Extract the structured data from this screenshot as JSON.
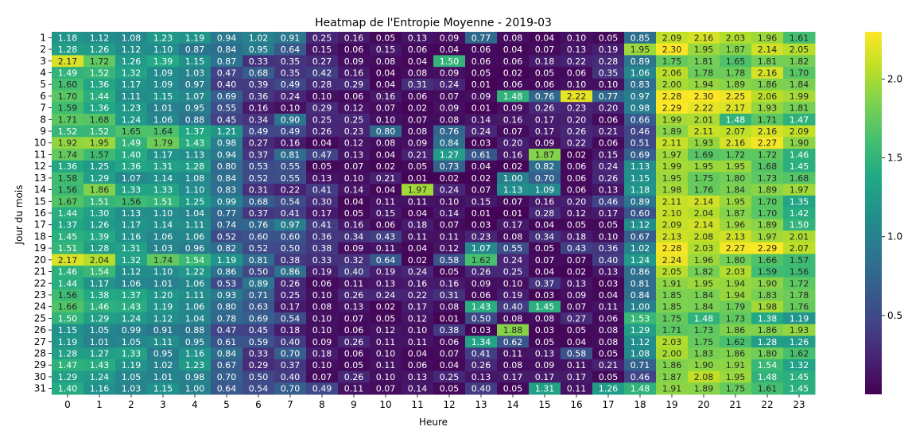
{
  "chart_data": {
    "type": "heatmap",
    "title": "Heatmap de l'Entropie Moyenne - 2019-03",
    "xlabel": "Heure",
    "ylabel": "Jour du mois",
    "x": [
      "0",
      "1",
      "2",
      "3",
      "4",
      "5",
      "6",
      "7",
      "8",
      "9",
      "10",
      "11",
      "12",
      "13",
      "14",
      "15",
      "16",
      "17",
      "18",
      "19",
      "20",
      "21",
      "22",
      "23"
    ],
    "y": [
      "1",
      "2",
      "3",
      "4",
      "5",
      "6",
      "7",
      "8",
      "9",
      "10",
      "11",
      "12",
      "13",
      "14",
      "15",
      "16",
      "17",
      "18",
      "19",
      "20",
      "21",
      "22",
      "23",
      "24",
      "25",
      "26",
      "27",
      "28",
      "29",
      "30",
      "31"
    ],
    "values": [
      [
        1.18,
        1.12,
        1.08,
        1.23,
        1.19,
        0.94,
        1.02,
        0.91,
        0.25,
        0.16,
        0.05,
        0.13,
        0.09,
        0.77,
        0.08,
        0.04,
        0.1,
        0.05,
        0.85,
        2.09,
        2.16,
        2.03,
        1.96,
        1.61
      ],
      [
        1.28,
        1.26,
        1.12,
        1.1,
        0.87,
        0.84,
        0.95,
        0.64,
        0.15,
        0.06,
        0.15,
        0.06,
        0.04,
        0.06,
        0.04,
        0.07,
        0.13,
        0.19,
        1.95,
        2.3,
        1.95,
        1.87,
        2.14,
        2.05
      ],
      [
        2.17,
        1.72,
        1.26,
        1.39,
        1.15,
        0.87,
        0.33,
        0.35,
        0.27,
        0.09,
        0.08,
        0.04,
        1.5,
        0.06,
        0.06,
        0.18,
        0.22,
        0.28,
        0.89,
        1.75,
        1.81,
        1.65,
        1.81,
        1.82
      ],
      [
        1.49,
        1.52,
        1.32,
        1.09,
        1.03,
        0.47,
        0.68,
        0.35,
        0.42,
        0.16,
        0.04,
        0.08,
        0.09,
        0.05,
        0.02,
        0.05,
        0.06,
        0.35,
        1.06,
        2.06,
        1.78,
        1.78,
        2.16,
        1.7
      ],
      [
        1.6,
        1.36,
        1.17,
        1.09,
        0.97,
        0.4,
        0.39,
        0.49,
        0.28,
        0.29,
        0.04,
        0.31,
        0.24,
        0.01,
        0.06,
        0.06,
        0.1,
        0.1,
        0.83,
        2.0,
        1.94,
        1.89,
        1.86,
        1.84
      ],
      [
        1.7,
        1.44,
        1.11,
        1.15,
        1.07,
        0.69,
        0.36,
        0.24,
        0.1,
        0.06,
        0.16,
        0.06,
        0.07,
        0.09,
        1.48,
        0.76,
        2.22,
        0.77,
        0.97,
        2.28,
        2.3,
        2.25,
        2.06,
        1.99
      ],
      [
        1.59,
        1.36,
        1.23,
        1.01,
        0.95,
        0.55,
        0.16,
        0.1,
        0.29,
        0.12,
        0.07,
        0.02,
        0.09,
        0.01,
        0.09,
        0.26,
        0.23,
        0.2,
        0.98,
        2.29,
        2.22,
        2.17,
        1.93,
        1.81
      ],
      [
        1.71,
        1.68,
        1.24,
        1.06,
        0.88,
        0.45,
        0.34,
        0.9,
        0.25,
        0.25,
        0.1,
        0.07,
        0.08,
        0.14,
        0.16,
        0.17,
        0.2,
        0.06,
        0.66,
        1.99,
        2.01,
        1.48,
        1.71,
        1.47
      ],
      [
        1.52,
        1.52,
        1.65,
        1.64,
        1.37,
        1.21,
        0.49,
        0.49,
        0.26,
        0.23,
        0.8,
        0.08,
        0.76,
        0.24,
        0.07,
        0.17,
        0.26,
        0.21,
        0.46,
        1.89,
        2.11,
        2.07,
        2.16,
        2.09
      ],
      [
        1.92,
        1.95,
        1.49,
        1.79,
        1.43,
        0.98,
        0.27,
        0.16,
        0.04,
        0.12,
        0.08,
        0.09,
        0.84,
        0.03,
        0.2,
        0.09,
        0.22,
        0.06,
        0.51,
        2.11,
        1.93,
        2.16,
        2.27,
        1.9
      ],
      [
        1.74,
        1.57,
        1.4,
        1.17,
        1.13,
        0.94,
        0.37,
        0.81,
        0.47,
        0.13,
        0.04,
        0.21,
        1.27,
        0.61,
        0.16,
        1.87,
        0.02,
        0.15,
        0.69,
        1.97,
        1.69,
        1.72,
        1.72,
        1.46
      ],
      [
        1.36,
        1.25,
        1.36,
        1.31,
        1.28,
        0.8,
        0.53,
        0.55,
        0.05,
        0.07,
        0.02,
        0.05,
        0.73,
        0.04,
        0.02,
        0.82,
        0.06,
        0.24,
        1.13,
        1.99,
        1.95,
        1.95,
        1.68,
        1.45
      ],
      [
        1.58,
        1.29,
        1.07,
        1.14,
        1.08,
        0.84,
        0.52,
        0.55,
        0.13,
        0.1,
        0.21,
        0.01,
        0.02,
        0.02,
        1.0,
        0.7,
        0.06,
        0.26,
        1.15,
        1.95,
        1.75,
        1.8,
        1.73,
        1.68
      ],
      [
        1.56,
        1.86,
        1.33,
        1.33,
        1.1,
        0.83,
        0.31,
        0.22,
        0.41,
        0.14,
        0.04,
        1.97,
        0.24,
        0.07,
        1.13,
        1.09,
        0.06,
        0.13,
        1.18,
        1.98,
        1.76,
        1.84,
        1.89,
        1.97
      ],
      [
        1.67,
        1.51,
        1.56,
        1.51,
        1.25,
        0.99,
        0.68,
        0.54,
        0.3,
        0.04,
        0.11,
        0.11,
        0.1,
        0.15,
        0.07,
        0.16,
        0.2,
        0.46,
        0.89,
        2.11,
        2.14,
        1.95,
        1.7,
        1.35
      ],
      [
        1.44,
        1.3,
        1.13,
        1.1,
        1.04,
        0.77,
        0.37,
        0.41,
        0.17,
        0.05,
        0.15,
        0.04,
        0.14,
        0.01,
        0.01,
        0.28,
        0.12,
        0.17,
        0.6,
        2.1,
        2.04,
        1.87,
        1.7,
        1.42
      ],
      [
        1.37,
        1.26,
        1.17,
        1.14,
        1.11,
        0.74,
        0.76,
        0.97,
        0.41,
        0.16,
        0.06,
        0.18,
        0.07,
        0.03,
        0.17,
        0.04,
        0.05,
        0.05,
        1.12,
        2.09,
        2.14,
        1.96,
        1.89,
        1.5
      ],
      [
        1.45,
        1.39,
        1.16,
        1.06,
        1.06,
        0.52,
        0.6,
        0.6,
        0.36,
        0.34,
        0.43,
        0.11,
        0.11,
        0.23,
        0.08,
        0.34,
        0.18,
        0.1,
        0.67,
        2.13,
        2.08,
        2.13,
        1.97,
        2.01
      ],
      [
        1.51,
        1.28,
        1.31,
        1.03,
        0.96,
        0.82,
        0.52,
        0.5,
        0.38,
        0.09,
        0.11,
        0.04,
        0.12,
        1.07,
        0.55,
        0.05,
        0.43,
        0.36,
        1.02,
        2.28,
        2.03,
        2.27,
        2.29,
        2.07
      ],
      [
        2.17,
        2.04,
        1.32,
        1.74,
        1.54,
        1.19,
        0.81,
        0.38,
        0.33,
        0.32,
        0.64,
        0.02,
        0.58,
        1.62,
        0.24,
        0.07,
        0.07,
        0.4,
        1.24,
        2.24,
        1.96,
        1.8,
        1.66,
        1.57
      ],
      [
        1.46,
        1.54,
        1.12,
        1.1,
        1.22,
        0.86,
        0.5,
        0.86,
        0.19,
        0.4,
        0.19,
        0.24,
        0.05,
        0.26,
        0.25,
        0.04,
        0.02,
        0.13,
        0.86,
        2.05,
        1.82,
        2.03,
        1.59,
        1.56
      ],
      [
        1.44,
        1.17,
        1.06,
        1.01,
        1.06,
        0.53,
        0.89,
        0.26,
        0.06,
        0.11,
        0.13,
        0.16,
        0.16,
        0.09,
        0.1,
        0.37,
        0.13,
        0.03,
        0.81,
        1.91,
        1.95,
        1.94,
        1.9,
        1.72
      ],
      [
        1.56,
        1.38,
        1.37,
        1.2,
        1.11,
        0.93,
        0.71,
        0.25,
        0.1,
        0.26,
        0.24,
        0.22,
        0.31,
        0.06,
        0.19,
        0.03,
        0.09,
        0.04,
        0.84,
        1.85,
        1.84,
        1.94,
        1.83,
        1.78
      ],
      [
        1.66,
        1.46,
        1.43,
        1.19,
        1.06,
        0.8,
        0.63,
        0.17,
        0.08,
        0.13,
        0.02,
        0.17,
        0.08,
        1.43,
        0.4,
        1.45,
        0.07,
        0.11,
        1.0,
        1.85,
        1.84,
        1.79,
        1.98,
        1.76
      ],
      [
        1.5,
        1.29,
        1.24,
        1.12,
        1.04,
        0.78,
        0.69,
        0.54,
        0.1,
        0.07,
        0.05,
        0.12,
        0.01,
        0.5,
        0.08,
        0.08,
        0.27,
        0.06,
        1.53,
        1.75,
        1.48,
        1.73,
        1.38,
        1.19
      ],
      [
        1.15,
        1.05,
        0.99,
        0.91,
        0.88,
        0.47,
        0.45,
        0.18,
        0.1,
        0.06,
        0.12,
        0.1,
        0.38,
        0.03,
        1.88,
        0.03,
        0.05,
        0.08,
        1.29,
        1.71,
        1.73,
        1.86,
        1.86,
        1.93
      ],
      [
        1.19,
        1.01,
        1.05,
        1.11,
        0.95,
        0.61,
        0.59,
        0.4,
        0.09,
        0.26,
        0.11,
        0.11,
        0.06,
        1.34,
        0.62,
        0.05,
        0.04,
        0.08,
        1.12,
        2.03,
        1.75,
        1.62,
        1.28,
        1.26
      ],
      [
        1.28,
        1.27,
        1.33,
        0.95,
        1.16,
        0.84,
        0.33,
        0.7,
        0.18,
        0.06,
        0.1,
        0.04,
        0.07,
        0.41,
        0.11,
        0.13,
        0.58,
        0.05,
        1.08,
        2.0,
        1.83,
        1.86,
        1.8,
        1.62
      ],
      [
        1.47,
        1.43,
        1.19,
        1.02,
        1.23,
        0.67,
        0.29,
        0.37,
        0.1,
        0.05,
        0.11,
        0.06,
        0.04,
        0.26,
        0.08,
        0.09,
        0.11,
        0.21,
        0.71,
        1.86,
        1.9,
        1.91,
        1.54,
        1.32
      ],
      [
        1.29,
        1.24,
        1.05,
        1.01,
        0.98,
        0.7,
        0.5,
        0.4,
        0.07,
        0.26,
        0.1,
        0.13,
        0.25,
        0.13,
        0.17,
        0.17,
        0.17,
        0.05,
        0.46,
        1.87,
        2.08,
        1.95,
        1.48,
        1.45
      ],
      [
        1.4,
        1.16,
        1.03,
        1.15,
        1.0,
        0.64,
        0.54,
        0.7,
        0.49,
        0.11,
        0.07,
        0.14,
        0.05,
        0.4,
        0.05,
        1.31,
        0.11,
        1.26,
        1.48,
        1.91,
        1.89,
        1.75,
        1.61,
        1.45
      ]
    ],
    "vmin": 0.0,
    "vmax": 2.3,
    "colormap": "viridis",
    "colorbar_ticks": [
      "0.5",
      "1.0",
      "1.5",
      "2.0"
    ],
    "colorbar_tick_values": [
      0.5,
      1.0,
      1.5,
      2.0
    ]
  }
}
